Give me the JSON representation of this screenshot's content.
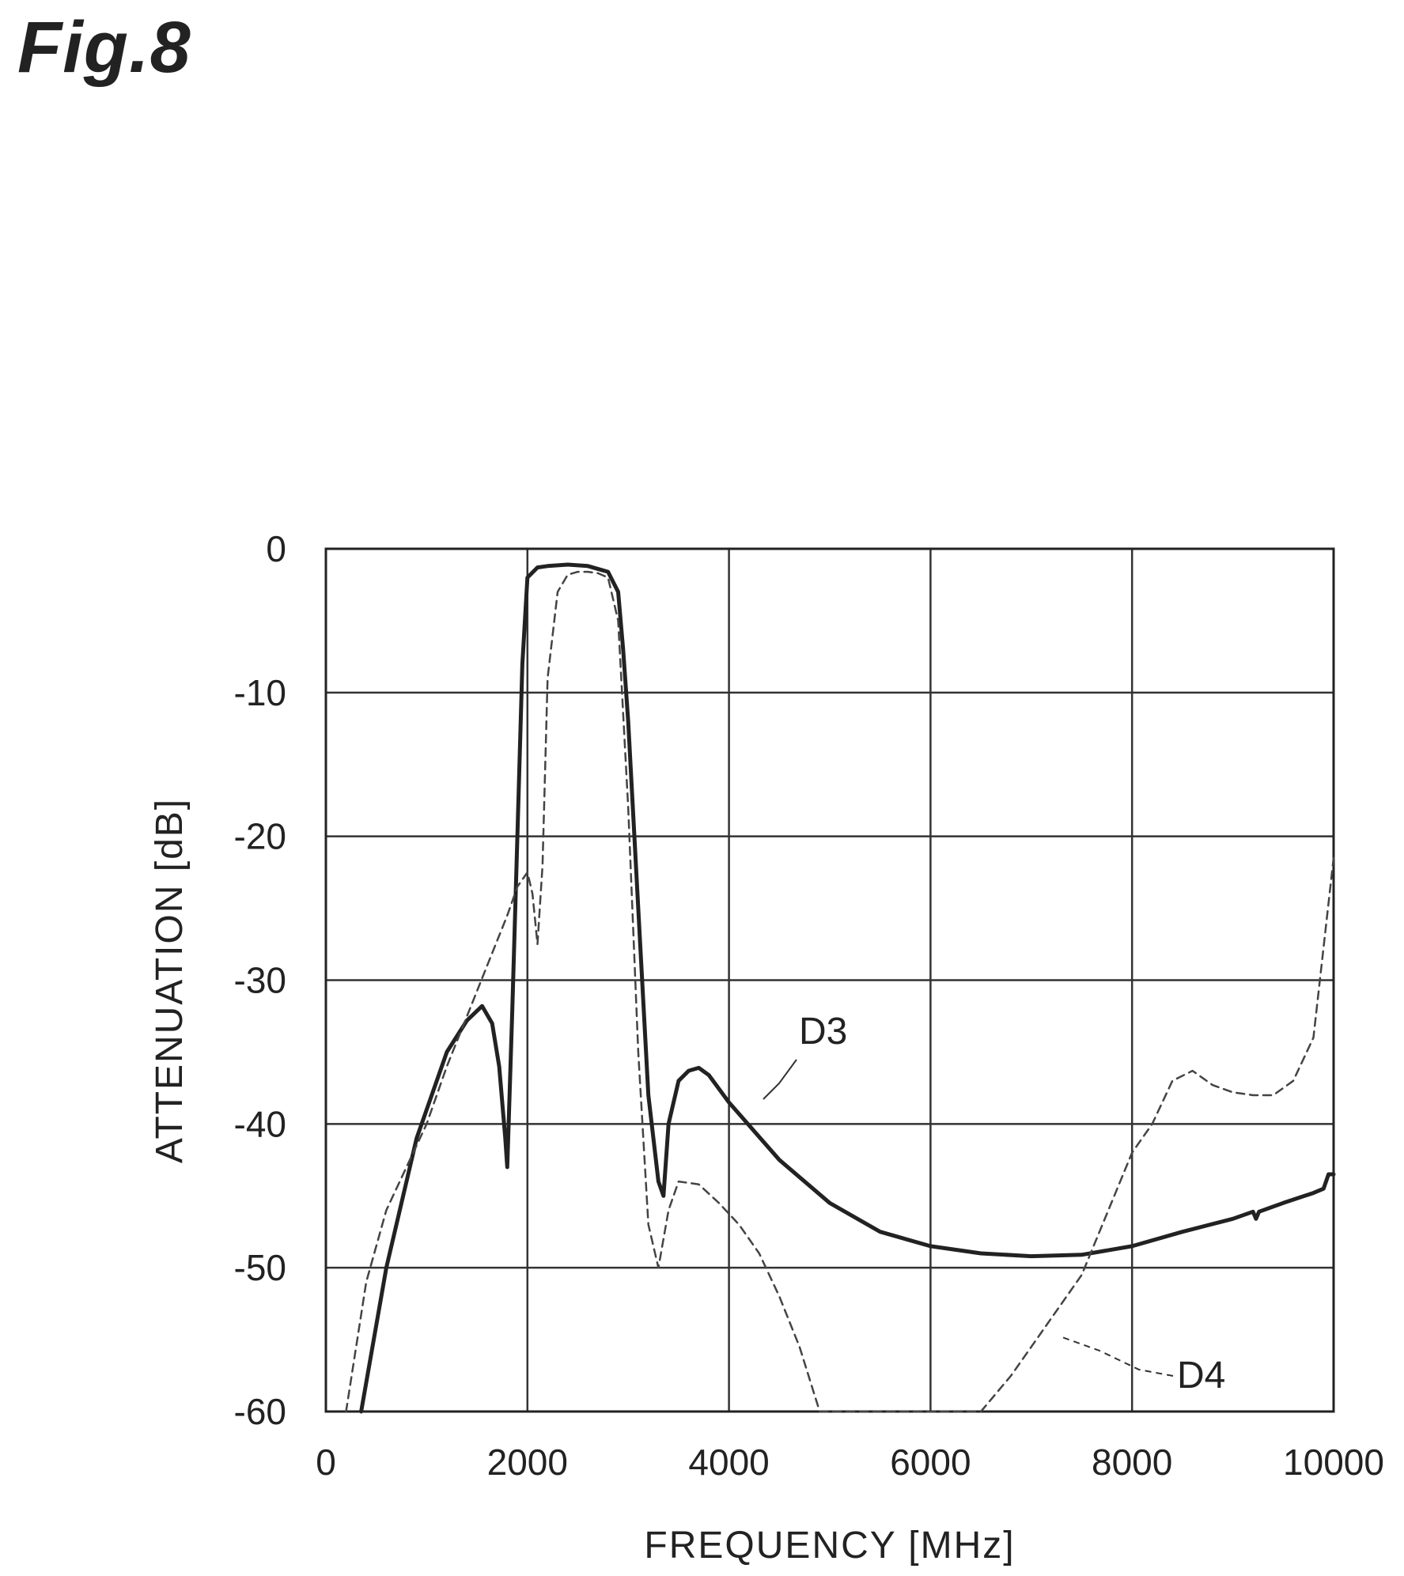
{
  "figure_title": "Fig.8",
  "chart_data": {
    "type": "line",
    "xlabel": "FREQUENCY [MHz]",
    "ylabel": "ATTENUATION [dB]",
    "xlim": [
      0,
      10000
    ],
    "ylim": [
      -60,
      0
    ],
    "xticks": [
      0,
      2000,
      4000,
      6000,
      8000,
      10000
    ],
    "yticks": [
      0,
      -10,
      -20,
      -30,
      -40,
      -50,
      -60
    ],
    "grid": true,
    "series": [
      {
        "name": "D3",
        "style": "solid",
        "color": "#222222",
        "x": [
          350,
          600,
          900,
          1200,
          1400,
          1550,
          1650,
          1720,
          1780,
          1800,
          1850,
          1900,
          1950,
          2000,
          2100,
          2200,
          2400,
          2600,
          2800,
          2900,
          2950,
          3000,
          3100,
          3200,
          3300,
          3350,
          3400,
          3500,
          3600,
          3700,
          3800,
          4000,
          4500,
          5000,
          5500,
          6000,
          6500,
          7000,
          7500,
          8000,
          8500,
          9000,
          9200,
          9230,
          9260,
          9500,
          9800,
          9900,
          9950,
          10000
        ],
        "y": [
          -60,
          -50,
          -41,
          -35,
          -32.8,
          -31.8,
          -33,
          -36,
          -41,
          -43,
          -32,
          -20,
          -8,
          -2,
          -1.3,
          -1.2,
          -1.1,
          -1.2,
          -1.6,
          -3,
          -7,
          -12,
          -25,
          -38,
          -44,
          -45,
          -40,
          -37,
          -36.3,
          -36.1,
          -36.6,
          -38.5,
          -42.5,
          -45.5,
          -47.5,
          -48.5,
          -49,
          -49.2,
          -49.1,
          -48.5,
          -47.5,
          -46.6,
          -46.1,
          -46.6,
          -46.1,
          -45.5,
          -44.8,
          -44.5,
          -43.5,
          -43.5
        ]
      },
      {
        "name": "D4",
        "style": "dashed",
        "color": "#444444",
        "x": [
          200,
          400,
          600,
          800,
          1000,
          1200,
          1400,
          1600,
          1800,
          1900,
          2000,
          2050,
          2100,
          2150,
          2200,
          2300,
          2400,
          2500,
          2600,
          2700,
          2800,
          2900,
          3000,
          3100,
          3200,
          3300,
          3400,
          3500,
          3700,
          3900,
          4100,
          4300,
          4500,
          4700,
          4900,
          6500,
          6800,
          7000,
          7200,
          7500,
          8000,
          8200,
          8400,
          8600,
          8800,
          9000,
          9200,
          9400,
          9600,
          9800,
          10000
        ],
        "y": [
          -60,
          -51,
          -46,
          -43,
          -40,
          -36,
          -32.5,
          -29,
          -25.5,
          -23.5,
          -22.5,
          -24,
          -27.5,
          -22,
          -9,
          -3,
          -1.8,
          -1.6,
          -1.6,
          -1.7,
          -2,
          -5,
          -18,
          -35,
          -47,
          -50,
          -46,
          -44,
          -44.2,
          -45.5,
          -47,
          -49,
          -52,
          -55.5,
          -60,
          -60,
          -57.5,
          -55.5,
          -53.5,
          -50.5,
          -42,
          -40,
          -37,
          -36.3,
          -37.3,
          -37.8,
          -38,
          -38,
          -37,
          -34,
          -21.5
        ]
      }
    ],
    "annotations": [
      {
        "text": "D3",
        "series": "D3"
      },
      {
        "text": "D4",
        "series": "D4"
      }
    ]
  }
}
